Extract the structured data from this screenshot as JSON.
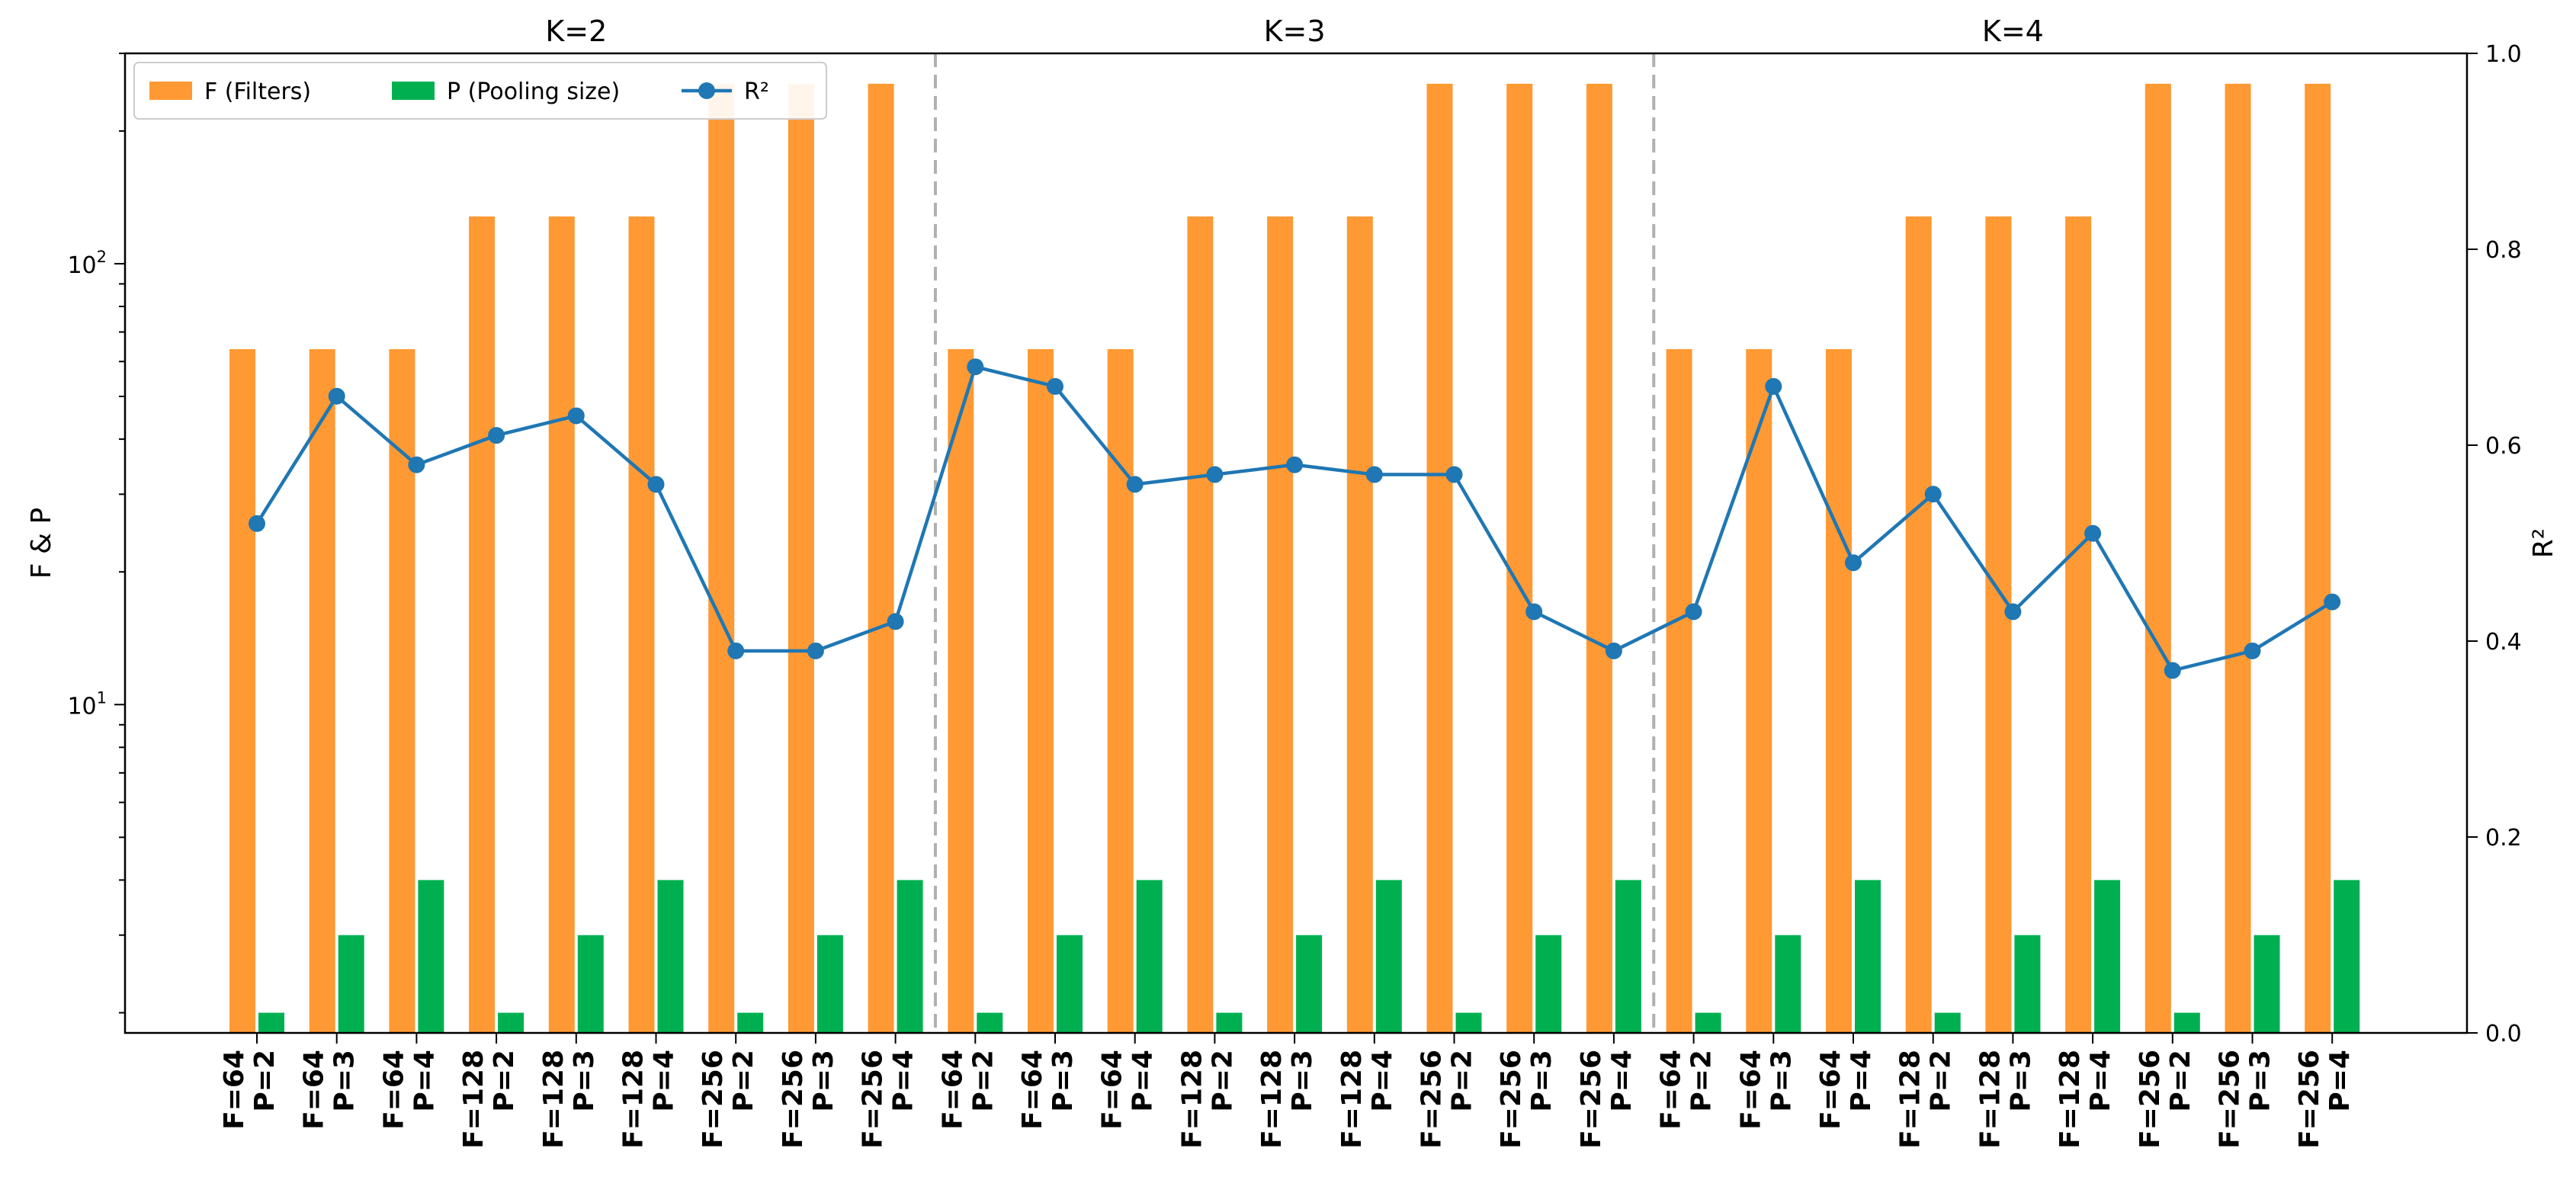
{
  "chart_data": {
    "type": "bar+line",
    "groups": [
      "K=2",
      "K=3",
      "K=4"
    ],
    "categories": [
      {
        "f_label": "F=64",
        "p_label": "P=2"
      },
      {
        "f_label": "F=64",
        "p_label": "P=3"
      },
      {
        "f_label": "F=64",
        "p_label": "P=4"
      },
      {
        "f_label": "F=128",
        "p_label": "P=2"
      },
      {
        "f_label": "F=128",
        "p_label": "P=3"
      },
      {
        "f_label": "F=128",
        "p_label": "P=4"
      },
      {
        "f_label": "F=256",
        "p_label": "P=2"
      },
      {
        "f_label": "F=256",
        "p_label": "P=3"
      },
      {
        "f_label": "F=256",
        "p_label": "P=4"
      },
      {
        "f_label": "F=64",
        "p_label": "P=2"
      },
      {
        "f_label": "F=64",
        "p_label": "P=3"
      },
      {
        "f_label": "F=64",
        "p_label": "P=4"
      },
      {
        "f_label": "F=128",
        "p_label": "P=2"
      },
      {
        "f_label": "F=128",
        "p_label": "P=3"
      },
      {
        "f_label": "F=128",
        "p_label": "P=4"
      },
      {
        "f_label": "F=256",
        "p_label": "P=2"
      },
      {
        "f_label": "F=256",
        "p_label": "P=3"
      },
      {
        "f_label": "F=256",
        "p_label": "P=4"
      },
      {
        "f_label": "F=64",
        "p_label": "P=2"
      },
      {
        "f_label": "F=64",
        "p_label": "P=3"
      },
      {
        "f_label": "F=64",
        "p_label": "P=4"
      },
      {
        "f_label": "F=128",
        "p_label": "P=2"
      },
      {
        "f_label": "F=128",
        "p_label": "P=3"
      },
      {
        "f_label": "F=128",
        "p_label": "P=4"
      },
      {
        "f_label": "F=256",
        "p_label": "P=2"
      },
      {
        "f_label": "F=256",
        "p_label": "P=3"
      },
      {
        "f_label": "F=256",
        "p_label": "P=4"
      }
    ],
    "series": [
      {
        "name": "F (Filters)",
        "kind": "bar",
        "axis": "left",
        "color": "#FF9933",
        "values": [
          64,
          64,
          64,
          128,
          128,
          128,
          256,
          256,
          256,
          64,
          64,
          64,
          128,
          128,
          128,
          256,
          256,
          256,
          64,
          64,
          64,
          128,
          128,
          128,
          256,
          256,
          256
        ]
      },
      {
        "name": "P (Pooling size)",
        "kind": "bar",
        "axis": "left",
        "color": "#00B050",
        "values": [
          2,
          3,
          4,
          2,
          3,
          4,
          2,
          3,
          4,
          2,
          3,
          4,
          2,
          3,
          4,
          2,
          3,
          4,
          2,
          3,
          4,
          2,
          3,
          4,
          2,
          3,
          4
        ]
      },
      {
        "name": "R²",
        "kind": "line",
        "axis": "right",
        "color": "#1F77B4",
        "values": [
          0.52,
          0.65,
          0.58,
          0.61,
          0.63,
          0.56,
          0.39,
          0.39,
          0.42,
          0.68,
          0.66,
          0.56,
          0.57,
          0.58,
          0.57,
          0.57,
          0.43,
          0.39,
          0.43,
          0.66,
          0.48,
          0.55,
          0.43,
          0.51,
          0.37,
          0.39,
          0.44
        ]
      }
    ],
    "ylabel_left": "F & P",
    "ylabel_right": "R²",
    "yscale_left": "log",
    "ylim_left": [
      1.8,
      300
    ],
    "yticks_left": [
      {
        "value": 10,
        "base": "10",
        "exp": "1"
      },
      {
        "value": 100,
        "base": "10",
        "exp": "2"
      }
    ],
    "ylim_right": [
      0.0,
      1.0
    ],
    "yticks_right": [
      "0.0",
      "0.2",
      "0.4",
      "0.6",
      "0.8",
      "1.0"
    ],
    "legend_position": "top-left",
    "separators": "dashed gray lines between K groups"
  }
}
